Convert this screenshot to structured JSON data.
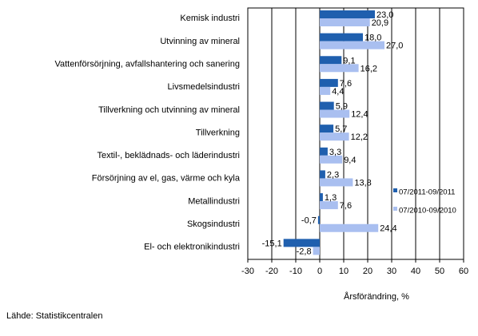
{
  "chart_data": {
    "type": "bar",
    "orientation": "horizontal",
    "categories": [
      "Kemisk industri",
      "Utvinning av mineral",
      "Vattenförsörjning, avfallshantering och sanering",
      "Livsmedelsindustri",
      "Tillverkning och utvinning av mineral",
      "Tillverkning",
      "Textil-, beklädnads- och läderindustri",
      "Försörjning av el, gas, värme och kyla",
      "Metallindustri",
      "Skogsindustri",
      "El- och elektronikindustri"
    ],
    "series": [
      {
        "name": "07/2011-09/2011",
        "color": "#1f5fae",
        "values": [
          23.0,
          18.0,
          9.1,
          7.6,
          5.9,
          5.7,
          3.3,
          2.3,
          1.3,
          -0.7,
          -15.1
        ],
        "labels": [
          "23,0",
          "18,0",
          "9,1",
          "7,6",
          "5,9",
          "5,7",
          "3,3",
          "2,3",
          "1,3",
          "-0,7",
          "-15,1"
        ]
      },
      {
        "name": "07/2010-09/2010",
        "color": "#a9bff0",
        "values": [
          20.9,
          27.0,
          16.2,
          4.4,
          12.4,
          12.2,
          9.4,
          13.8,
          7.6,
          24.4,
          -2.8
        ],
        "labels": [
          "20,9",
          "27,0",
          "16,2",
          "4,4",
          "12,4",
          "12,2",
          "9,4",
          "13,8",
          "7,6",
          "24,4",
          "-2,8"
        ]
      }
    ],
    "xlim": [
      -30,
      60
    ],
    "xticks": [
      -30,
      -20,
      -10,
      0,
      10,
      20,
      30,
      40,
      50,
      60
    ],
    "xlabel": "Årsförändring, %",
    "grid": true,
    "legend_position": "right"
  },
  "source": "Lähde: Statistikcentralen"
}
